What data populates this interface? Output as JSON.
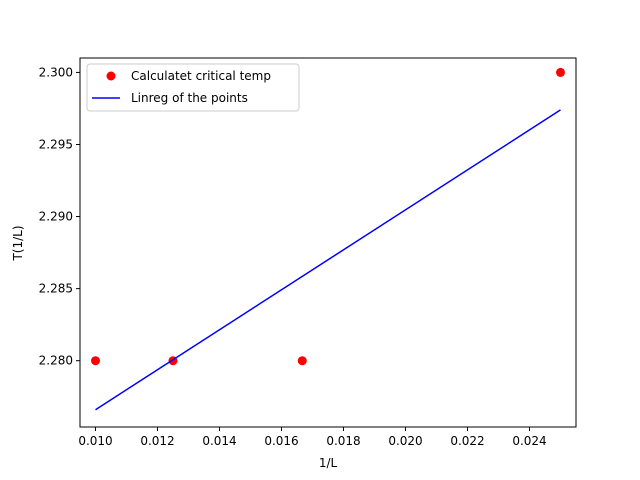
{
  "chart_data": {
    "type": "scatter",
    "title": "",
    "xlabel": "1/L",
    "ylabel": "T(1/L)",
    "xlim": [
      0.0095,
      0.0255
    ],
    "ylim": [
      2.2754,
      2.301
    ],
    "xticks": [
      "0.010",
      "0.012",
      "0.014",
      "0.016",
      "0.018",
      "0.020",
      "0.022",
      "0.024"
    ],
    "xtick_values": [
      0.01,
      0.012,
      0.014,
      0.016,
      0.018,
      0.02,
      0.022,
      0.024
    ],
    "yticks": [
      "2.280",
      "2.285",
      "2.290",
      "2.295",
      "2.300"
    ],
    "ytick_values": [
      2.28,
      2.285,
      2.29,
      2.295,
      2.3
    ],
    "grid": false,
    "legend_position": "upper-left",
    "series": [
      {
        "name": "Calculatet critical temp",
        "kind": "scatter",
        "color": "#ff0000",
        "x": [
          0.01,
          0.0125,
          0.01667,
          0.025
        ],
        "y": [
          2.28,
          2.28,
          2.28,
          2.3
        ]
      },
      {
        "name": "Linreg of the points",
        "kind": "line",
        "color": "#0000ff",
        "x": [
          0.01,
          0.025
        ],
        "y": [
          2.2766,
          2.2974
        ]
      }
    ]
  }
}
